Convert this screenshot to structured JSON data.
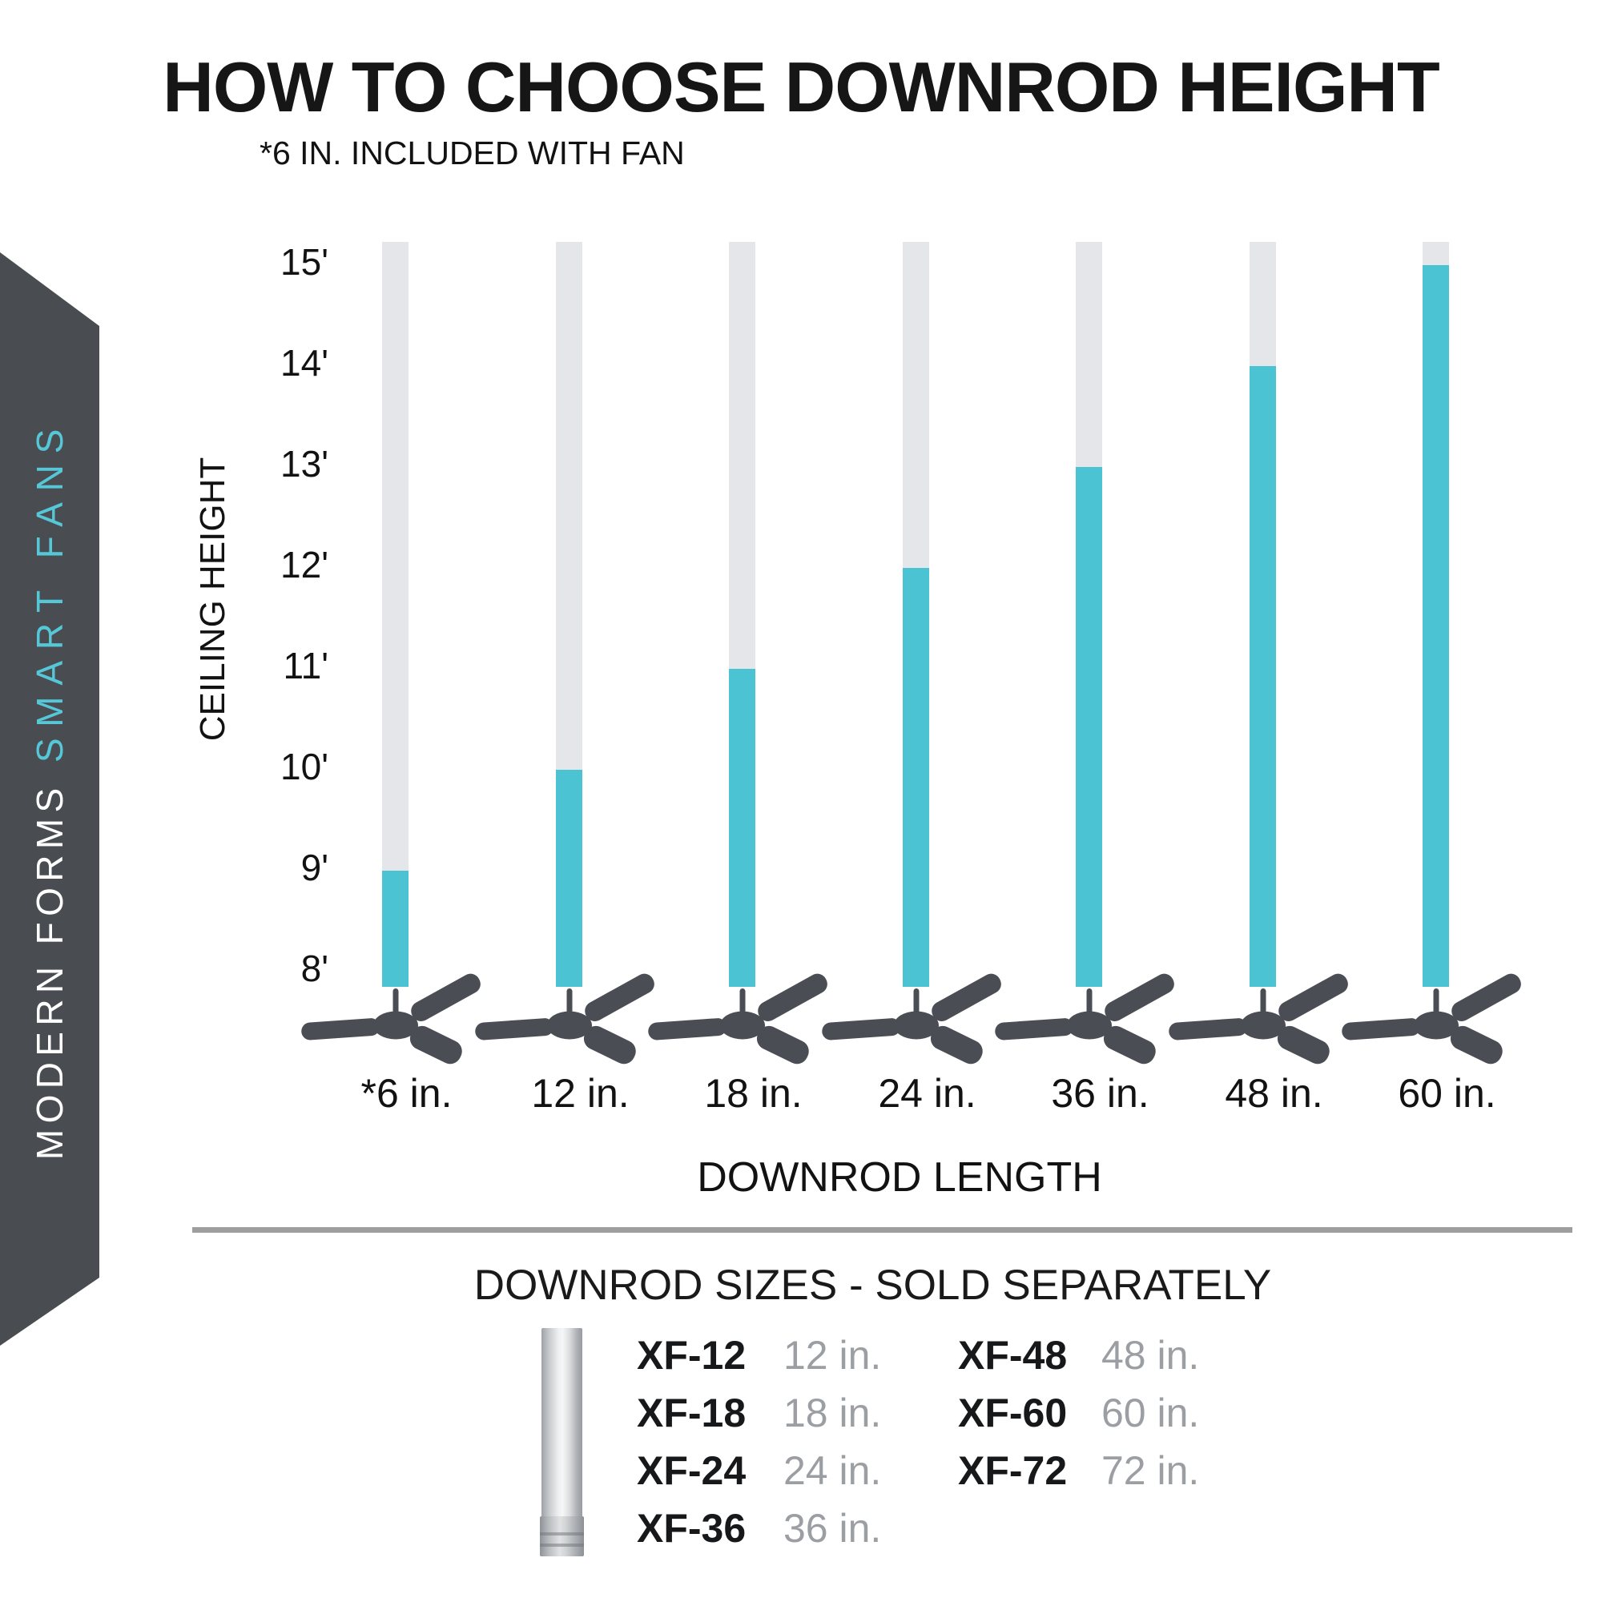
{
  "header": {
    "title": "HOW TO CHOOSE DOWNROD HEIGHT",
    "note": "*6 IN. INCLUDED WITH FAN"
  },
  "banner": {
    "line1": "MODERN FORMS",
    "line2": "SMART FANS",
    "bg_color": "#494d52",
    "teal_color": "#56c7d7"
  },
  "chart_data": {
    "type": "bar",
    "title": "HOW TO CHOOSE DOWNROD HEIGHT",
    "note": "*6 IN. INCLUDED WITH FAN",
    "xlabel": "DOWNROD LENGTH",
    "ylabel": "CEILING HEIGHT",
    "categories": [
      "*6 in.",
      "12 in.",
      "18 in.",
      "24 in.",
      "36 in.",
      "48 in.",
      "60 in."
    ],
    "downrod_length_in": [
      6,
      12,
      18,
      24,
      36,
      48,
      60
    ],
    "ceiling_height_ft": [
      9,
      10,
      11,
      12,
      13,
      14,
      15
    ],
    "y_ticks": [
      "15'",
      "14'",
      "13'",
      "12'",
      "11'",
      "10'",
      "9'",
      "8'"
    ],
    "y_axis_range_ft": [
      8,
      15
    ],
    "grid": "off",
    "legend": "none",
    "colors": {
      "bar_fill": "#4cc3d3",
      "bar_track": "#e4e6ea",
      "fan_silhouette": "#4a4e54"
    }
  },
  "footer": {
    "section_title": "DOWNROD SIZES - SOLD SEPARATELY",
    "products": [
      {
        "model": "XF-12",
        "size": "12 in."
      },
      {
        "model": "XF-18",
        "size": "18 in."
      },
      {
        "model": "XF-24",
        "size": "24 in."
      },
      {
        "model": "XF-36",
        "size": "36 in."
      },
      {
        "model": "XF-48",
        "size": "48 in."
      },
      {
        "model": "XF-60",
        "size": "60 in."
      },
      {
        "model": "XF-72",
        "size": "72 in."
      }
    ]
  }
}
